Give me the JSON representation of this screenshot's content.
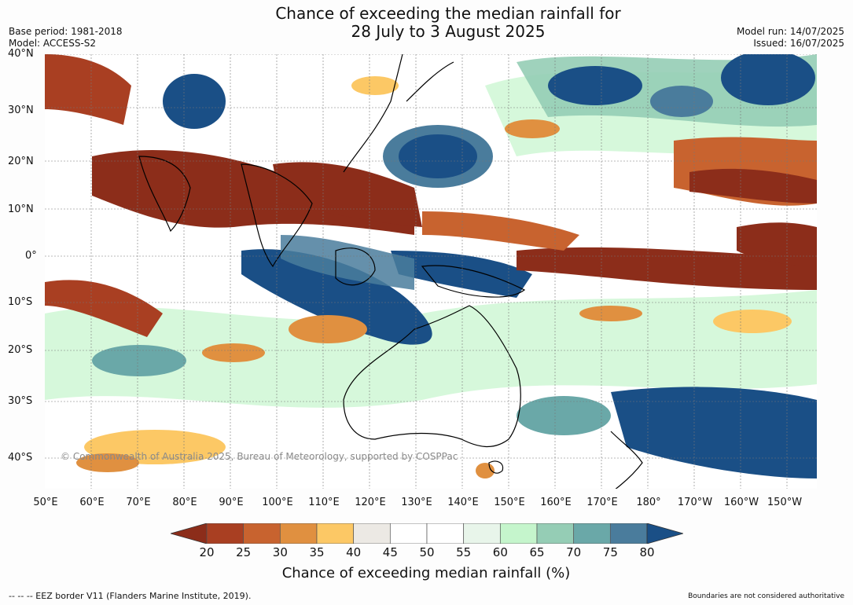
{
  "header": {
    "title_line1": "Chance of exceeding the median rainfall for",
    "title_line2": "28 July to 3 August 2025",
    "base_period": "Base period: 1981-2018",
    "model": "Model: ACCESS-S2",
    "model_run": "Model run: 14/07/2025",
    "issued": "Issued: 16/07/2025"
  },
  "map": {
    "lat_labels": [
      "40°N",
      "30°N",
      "20°N",
      "10°N",
      "0°",
      "10°S",
      "20°S",
      "30°S",
      "40°S"
    ],
    "lon_labels": [
      "50°E",
      "60°E",
      "70°E",
      "80°E",
      "90°E",
      "100°E",
      "110°E",
      "120°E",
      "130°E",
      "140°E",
      "150°E",
      "160°E",
      "170°E",
      "180°",
      "170°W",
      "160°W",
      "150°W"
    ],
    "copyright": "© Commonwealth of Australia 2025, Bureau of Meteorology, supported by COSPPac"
  },
  "legend": {
    "title": "Chance of exceeding median rainfall (%)",
    "ticks": [
      "20",
      "25",
      "30",
      "35",
      "40",
      "45",
      "50",
      "55",
      "60",
      "65",
      "70",
      "75",
      "80"
    ],
    "colors": [
      "#8c2d1a",
      "#a93f22",
      "#c8632f",
      "#e09040",
      "#fcc865",
      "#ece9e4",
      "#ffffff",
      "#ffffff",
      "#e8f5ea",
      "#c5f5cc",
      "#95cdb5",
      "#6aa8a8",
      "#4a7c9c",
      "#1a4f86"
    ]
  },
  "footer": {
    "eez": "--  --  -- EEZ border V11 (Flanders Marine Institute, 2019).",
    "boundaries": "Boundaries are not considered authoritative"
  }
}
